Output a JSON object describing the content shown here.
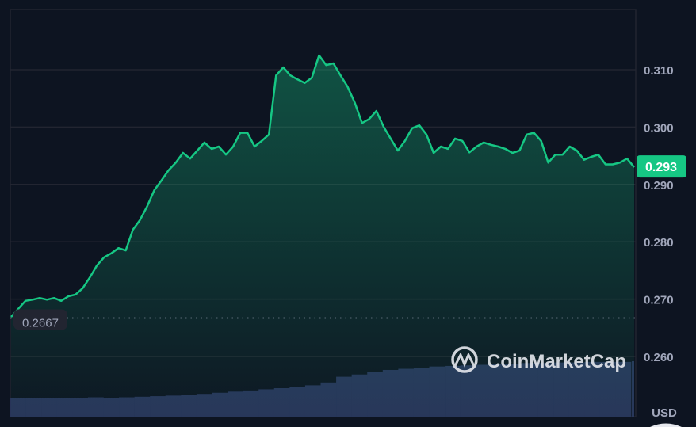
{
  "chart_data": {
    "type": "area",
    "title": "",
    "xlabel": "",
    "ylabel": "",
    "currency_label": "USD",
    "ylim": [
      0.2505,
      0.3202
    ],
    "yticks": [
      "0.310",
      "0.300",
      "0.290",
      "0.280",
      "0.270",
      "0.260"
    ],
    "ytick_values": [
      0.31,
      0.3,
      0.29,
      0.28,
      0.27,
      0.26
    ],
    "grid": true,
    "line_color": "#16c784",
    "reference_line": {
      "value": 0.2667,
      "label": "0.2667"
    },
    "current_price": {
      "value": 0.293,
      "label": "0.293",
      "color": "#16c784"
    },
    "values": [
      0.2669,
      0.2683,
      0.2697,
      0.2699,
      0.2702,
      0.2699,
      0.2702,
      0.2697,
      0.2705,
      0.2708,
      0.2719,
      0.2738,
      0.2759,
      0.2773,
      0.278,
      0.2789,
      0.2785,
      0.2821,
      0.2838,
      0.2862,
      0.289,
      0.2907,
      0.2925,
      0.2938,
      0.2955,
      0.2945,
      0.2959,
      0.2973,
      0.2962,
      0.2966,
      0.2952,
      0.2966,
      0.299,
      0.299,
      0.2966,
      0.2976,
      0.2987,
      0.309,
      0.3104,
      0.309,
      0.3083,
      0.3077,
      0.3086,
      0.3125,
      0.3108,
      0.3111,
      0.309,
      0.307,
      0.3042,
      0.3007,
      0.3014,
      0.3028,
      0.3001,
      0.298,
      0.2959,
      0.2976,
      0.2998,
      0.3003,
      0.2987,
      0.2955,
      0.2966,
      0.2962,
      0.298,
      0.2976,
      0.2956,
      0.2966,
      0.2973,
      0.2969,
      0.2966,
      0.2962,
      0.2955,
      0.2959,
      0.2987,
      0.299,
      0.2976,
      0.2938,
      0.2952,
      0.2952,
      0.2966,
      0.2959,
      0.2943,
      0.2948,
      0.2952,
      0.2935,
      0.2935,
      0.2938,
      0.2945,
      0.293
    ],
    "volume_relative": [
      33,
      33,
      33,
      33,
      33,
      34,
      33,
      34,
      35,
      36,
      37,
      38,
      40,
      42,
      44,
      46,
      48,
      50,
      52,
      55,
      60,
      70,
      74,
      78,
      82,
      84,
      86,
      88,
      89,
      90,
      91,
      92,
      93,
      94,
      94,
      95,
      95,
      96,
      96,
      96
    ]
  },
  "watermark": "CoinMarketCap"
}
